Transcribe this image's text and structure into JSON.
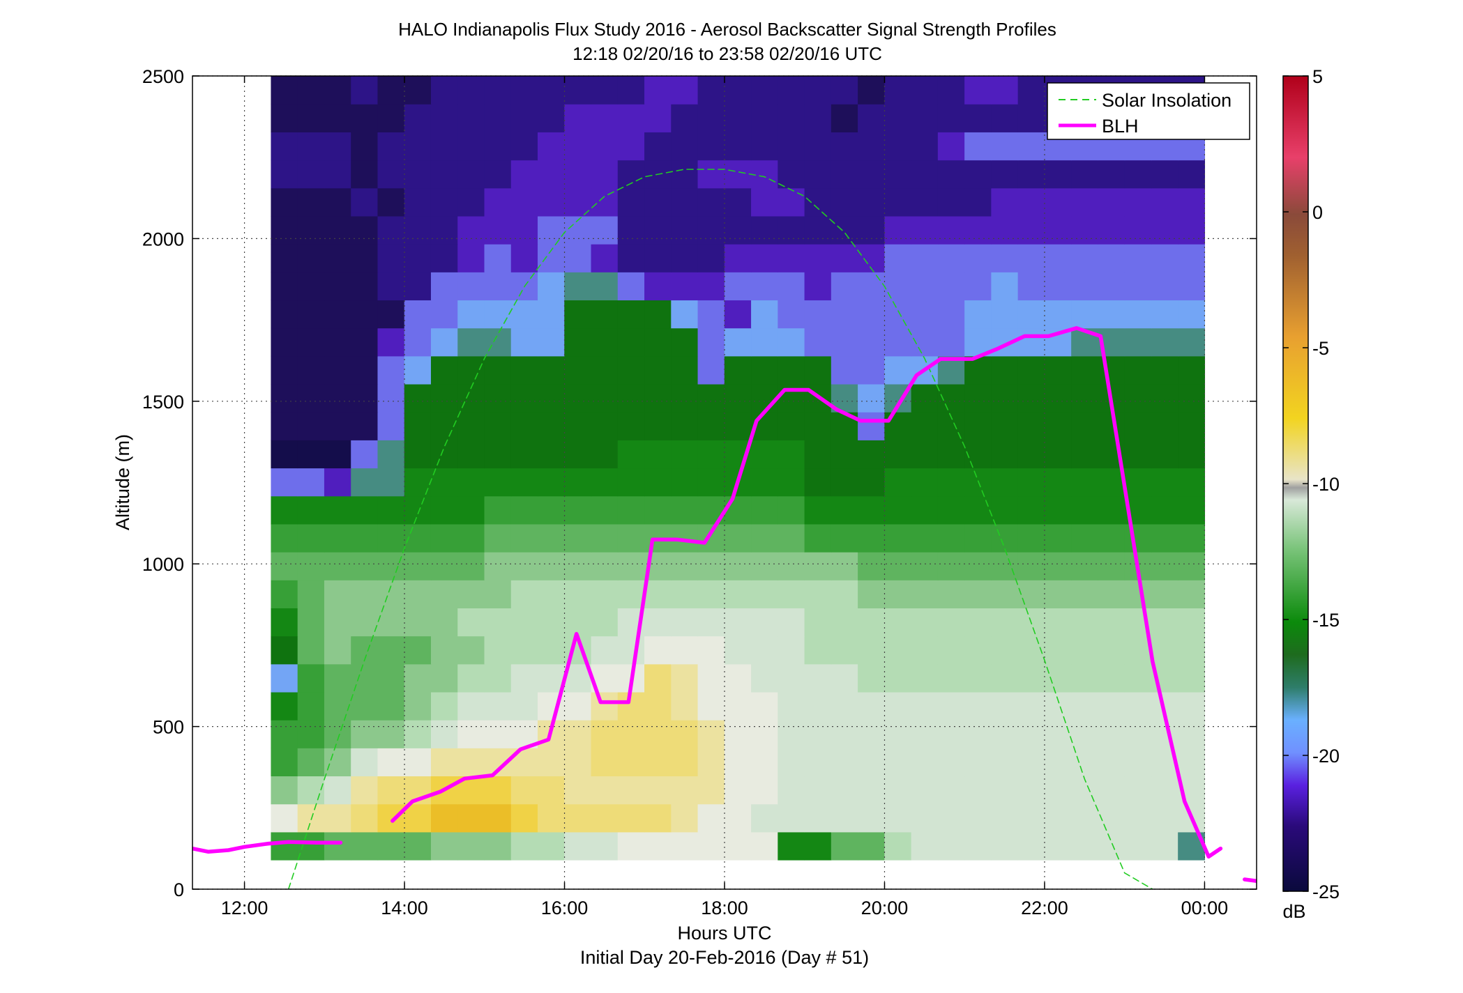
{
  "chart_data": {
    "type": "heatmap",
    "title": "HALO Indianapolis Flux Study 2016 - Aerosol Backscatter Signal Strength Profiles",
    "subtitle": "12:18 02/20/16 to 23:58 02/20/16  UTC",
    "xlabel": "Hours UTC",
    "xlabel2": "Initial Day 20-Feb-2016 (Day # 51)",
    "ylabel": "Altitude (m)",
    "x_unit": "hours UTC",
    "xlim": [
      11.35,
      24.65
    ],
    "ylim": [
      0,
      2500
    ],
    "x_ticks": [
      12,
      14,
      16,
      18,
      20,
      22,
      24
    ],
    "x_tick_labels": [
      "12:00",
      "14:00",
      "16:00",
      "18:00",
      "20:00",
      "22:00",
      "00:00"
    ],
    "y_ticks": [
      0,
      500,
      1000,
      1500,
      2000,
      2500
    ],
    "y_tick_labels": [
      "0",
      "500",
      "1000",
      "1500",
      "2000",
      "2500"
    ],
    "grid": true,
    "legend_position": "top-right",
    "colorbar": {
      "label": "dB",
      "min": -25,
      "max": 5,
      "ticks": [
        5,
        0,
        -5,
        -10,
        -15,
        -20,
        -25
      ],
      "tick_labels": [
        "5",
        "0",
        "-5",
        "-10",
        "-15",
        "-20",
        "-25"
      ]
    },
    "heatmap": {
      "x_start": 12.33,
      "x_end": 24.0,
      "y_bottom": 90,
      "y_top": 2500,
      "columns": 35,
      "rows": 28,
      "values_dB": [
        [
          -15,
          -15,
          -14,
          -14,
          -14,
          -14,
          -13,
          -13,
          -13,
          -12,
          -12,
          -11,
          -11,
          -10,
          -10,
          -10,
          -10,
          -10,
          -10,
          -16,
          -16,
          -14,
          -14,
          -12,
          -11,
          -11,
          -11,
          -11,
          -11,
          -11,
          -11,
          -11,
          -11,
          -11,
          -18
        ],
        [
          -10,
          -9,
          -9,
          -8,
          -7,
          -7,
          -6,
          -6,
          -6,
          -7,
          -8,
          -8,
          -8,
          -8,
          -8,
          -9,
          -10,
          -10,
          -11,
          -11,
          -11,
          -11,
          -11,
          -11,
          -11,
          -11,
          -11,
          -11,
          -11,
          -11,
          -11,
          -11,
          -11,
          -11,
          -11
        ],
        [
          -13,
          -12,
          -11,
          -9,
          -8,
          -8,
          -7,
          -7,
          -7,
          -8,
          -8,
          -9,
          -9,
          -9,
          -9,
          -9,
          -9,
          -10,
          -10,
          -11,
          -11,
          -11,
          -11,
          -11,
          -11,
          -11,
          -11,
          -11,
          -11,
          -11,
          -11,
          -11,
          -11,
          -11,
          -11
        ],
        [
          -15,
          -14,
          -13,
          -11,
          -10,
          -10,
          -9,
          -9,
          -9,
          -9,
          -9,
          -9,
          -8,
          -8,
          -8,
          -8,
          -9,
          -10,
          -10,
          -11,
          -11,
          -11,
          -11,
          -11,
          -11,
          -11,
          -11,
          -11,
          -11,
          -11,
          -11,
          -11,
          -11,
          -11,
          -11
        ],
        [
          -15,
          -15,
          -14,
          -13,
          -13,
          -12,
          -11,
          -10,
          -10,
          -10,
          -9,
          -9,
          -8,
          -8,
          -8,
          -8,
          -9,
          -10,
          -10,
          -11,
          -11,
          -11,
          -11,
          -11,
          -11,
          -11,
          -11,
          -11,
          -11,
          -11,
          -11,
          -11,
          -11,
          -11,
          -11
        ],
        [
          -16,
          -15,
          -14,
          -14,
          -14,
          -13,
          -12,
          -11,
          -11,
          -11,
          -10,
          -10,
          -9,
          -8,
          -8,
          -9,
          -10,
          -10,
          -10,
          -11,
          -11,
          -11,
          -11,
          -11,
          -11,
          -11,
          -11,
          -11,
          -11,
          -11,
          -11,
          -11,
          -11,
          -11,
          -11
        ],
        [
          -19,
          -15,
          -14,
          -14,
          -14,
          -13,
          -13,
          -12,
          -12,
          -11,
          -11,
          -11,
          -10,
          -10,
          -8,
          -9,
          -10,
          -10,
          -11,
          -11,
          -11,
          -11,
          -12,
          -12,
          -12,
          -12,
          -12,
          -12,
          -12,
          -12,
          -12,
          -12,
          -12,
          -12,
          -12
        ],
        [
          -17,
          -14,
          -13,
          -14,
          -14,
          -14,
          -13,
          -13,
          -12,
          -12,
          -12,
          -12,
          -11,
          -11,
          -10,
          -10,
          -10,
          -11,
          -11,
          -11,
          -12,
          -12,
          -12,
          -12,
          -12,
          -12,
          -12,
          -12,
          -12,
          -12,
          -12,
          -12,
          -12,
          -12,
          -12
        ],
        [
          -16,
          -14,
          -13,
          -13,
          -13,
          -13,
          -13,
          -12,
          -12,
          -12,
          -12,
          -12,
          -12,
          -11,
          -11,
          -11,
          -11,
          -11,
          -11,
          -11,
          -12,
          -12,
          -12,
          -12,
          -12,
          -12,
          -12,
          -12,
          -12,
          -12,
          -12,
          -12,
          -12,
          -12,
          -12
        ],
        [
          -15,
          -14,
          -13,
          -13,
          -13,
          -13,
          -13,
          -13,
          -13,
          -12,
          -12,
          -12,
          -12,
          -12,
          -12,
          -12,
          -12,
          -12,
          -12,
          -12,
          -12,
          -12,
          -13,
          -13,
          -13,
          -13,
          -13,
          -13,
          -13,
          -13,
          -13,
          -13,
          -13,
          -13,
          -13
        ],
        [
          -14,
          -14,
          -14,
          -14,
          -14,
          -14,
          -14,
          -14,
          -13,
          -13,
          -13,
          -13,
          -13,
          -13,
          -13,
          -13,
          -13,
          -13,
          -13,
          -13,
          -13,
          -13,
          -14,
          -14,
          -14,
          -14,
          -14,
          -14,
          -14,
          -14,
          -14,
          -14,
          -14,
          -14,
          -14
        ],
        [
          -15,
          -15,
          -15,
          -15,
          -15,
          -15,
          -15,
          -15,
          -14,
          -14,
          -14,
          -14,
          -14,
          -14,
          -14,
          -14,
          -14,
          -14,
          -14,
          -14,
          -15,
          -15,
          -15,
          -15,
          -15,
          -15,
          -15,
          -15,
          -15,
          -15,
          -15,
          -15,
          -15,
          -15,
          -15
        ],
        [
          -16,
          -16,
          -16,
          -16,
          -16,
          -16,
          -16,
          -16,
          -15,
          -15,
          -15,
          -15,
          -15,
          -15,
          -15,
          -15,
          -15,
          -15,
          -15,
          -15,
          -16,
          -16,
          -16,
          -16,
          -16,
          -16,
          -16,
          -16,
          -16,
          -16,
          -16,
          -16,
          -16,
          -16,
          -16
        ],
        [
          -20,
          -20,
          -21,
          -18,
          -18,
          -16,
          -16,
          -16,
          -16,
          -16,
          -16,
          -16,
          -16,
          -16,
          -16,
          -16,
          -16,
          -16,
          -16,
          -16,
          -17,
          -17,
          -17,
          -16,
          -16,
          -16,
          -16,
          -16,
          -16,
          -16,
          -16,
          -16,
          -16,
          -16,
          -16
        ],
        [
          -24,
          -24,
          -24,
          -20,
          -18,
          -17,
          -17,
          -17,
          -17,
          -17,
          -17,
          -17,
          -17,
          -16,
          -16,
          -16,
          -16,
          -16,
          -16,
          -16,
          -17,
          -17,
          -17,
          -17,
          -17,
          -17,
          -17,
          -17,
          -17,
          -17,
          -17,
          -17,
          -17,
          -17,
          -17
        ],
        [
          -23,
          -23,
          -23,
          -23,
          -20,
          -17,
          -17,
          -17,
          -17,
          -17,
          -17,
          -17,
          -17,
          -17,
          -17,
          -17,
          -17,
          -17,
          -17,
          -17,
          -17,
          -17,
          -20,
          -17,
          -17,
          -17,
          -17,
          -17,
          -17,
          -17,
          -17,
          -17,
          -17,
          -17,
          -17
        ],
        [
          -23,
          -23,
          -23,
          -23,
          -20,
          -17,
          -17,
          -17,
          -17,
          -17,
          -17,
          -17,
          -17,
          -17,
          -17,
          -17,
          -17,
          -17,
          -17,
          -17,
          -17,
          -18,
          -19,
          -18,
          -17,
          -17,
          -17,
          -17,
          -17,
          -17,
          -17,
          -17,
          -17,
          -17,
          -17
        ],
        [
          -23,
          -23,
          -23,
          -23,
          -20,
          -19,
          -17,
          -17,
          -17,
          -17,
          -17,
          -17,
          -17,
          -17,
          -17,
          -17,
          -20,
          -17,
          -17,
          -17,
          -17,
          -20,
          -20,
          -19,
          -19,
          -18,
          -17,
          -17,
          -17,
          -17,
          -17,
          -17,
          -17,
          -17,
          -17
        ],
        [
          -23,
          -23,
          -23,
          -23,
          -21,
          -20,
          -19,
          -18,
          -18,
          -19,
          -19,
          -17,
          -17,
          -17,
          -17,
          -17,
          -20,
          -19,
          -19,
          -19,
          -20,
          -20,
          -20,
          -20,
          -20,
          -20,
          -19,
          -19,
          -19,
          -19,
          -18,
          -18,
          -18,
          -18,
          -18
        ],
        [
          -23,
          -23,
          -23,
          -23,
          -23,
          -20,
          -20,
          -19,
          -19,
          -19,
          -19,
          -17,
          -17,
          -17,
          -17,
          -19,
          -20,
          -21,
          -19,
          -20,
          -20,
          -20,
          -20,
          -20,
          -20,
          -20,
          -19,
          -19,
          -19,
          -19,
          -19,
          -19,
          -19,
          -19,
          -19
        ],
        [
          -23,
          -23,
          -23,
          -23,
          -22,
          -22,
          -20,
          -20,
          -20,
          -20,
          -19,
          -18,
          -18,
          -20,
          -21,
          -21,
          -21,
          -20,
          -20,
          -20,
          -21,
          -20,
          -20,
          -20,
          -20,
          -20,
          -20,
          -19,
          -20,
          -20,
          -20,
          -20,
          -20,
          -20,
          -20
        ],
        [
          -23,
          -23,
          -23,
          -23,
          -22,
          -22,
          -22,
          -21,
          -20,
          -21,
          -20,
          -20,
          -21,
          -22,
          -22,
          -22,
          -22,
          -21,
          -21,
          -21,
          -21,
          -21,
          -21,
          -20,
          -20,
          -20,
          -20,
          -20,
          -20,
          -20,
          -20,
          -20,
          -20,
          -20,
          -20
        ],
        [
          -23,
          -23,
          -23,
          -23,
          -22,
          -22,
          -22,
          -21,
          -21,
          -21,
          -20,
          -20,
          -20,
          -22,
          -22,
          -22,
          -22,
          -22,
          -22,
          -22,
          -22,
          -22,
          -22,
          -21,
          -21,
          -21,
          -21,
          -21,
          -21,
          -21,
          -21,
          -21,
          -21,
          -21,
          -21
        ],
        [
          -23,
          -23,
          -23,
          -22,
          -23,
          -22,
          -22,
          -22,
          -21,
          -21,
          -21,
          -21,
          -21,
          -22,
          -22,
          -22,
          -22,
          -22,
          -21,
          -21,
          -22,
          -22,
          -22,
          -22,
          -22,
          -22,
          -22,
          -21,
          -21,
          -21,
          -21,
          -21,
          -21,
          -21,
          -21
        ],
        [
          -22,
          -22,
          -22,
          -23,
          -22,
          -22,
          -22,
          -22,
          -22,
          -21,
          -21,
          -21,
          -21,
          -22,
          -22,
          -22,
          -21,
          -21,
          -21,
          -22,
          -22,
          -22,
          -22,
          -22,
          -22,
          -22,
          -22,
          -22,
          -22,
          -22,
          -22,
          -22,
          -22,
          -22,
          -22
        ],
        [
          -22,
          -22,
          -22,
          -23,
          -22,
          -22,
          -22,
          -22,
          -22,
          -22,
          -21,
          -21,
          -21,
          -21,
          -22,
          -22,
          -22,
          -22,
          -22,
          -22,
          -22,
          -22,
          -22,
          -22,
          -22,
          -21,
          -20,
          -20,
          -20,
          -20,
          -20,
          -20,
          -20,
          -20,
          -20
        ],
        [
          -23,
          -23,
          -23,
          -23,
          -23,
          -22,
          -22,
          -22,
          -22,
          -22,
          -22,
          -21,
          -21,
          -21,
          -21,
          -22,
          -22,
          -22,
          -22,
          -22,
          -22,
          -23,
          -22,
          -22,
          -22,
          -22,
          -22,
          -22,
          -22,
          -22,
          -22,
          -22,
          -22,
          -22,
          -22
        ],
        [
          -23,
          -23,
          -23,
          -22,
          -23,
          -23,
          -22,
          -22,
          -22,
          -22,
          -22,
          -22,
          -22,
          -22,
          -21,
          -21,
          -22,
          -22,
          -22,
          -22,
          -22,
          -22,
          -23,
          -22,
          -22,
          -22,
          -21,
          -21,
          -22,
          -22,
          -22,
          -22,
          -22,
          -22,
          -22
        ]
      ]
    },
    "series": [
      {
        "name": "Solar Insolation",
        "style": "dashed",
        "color": "#22cc22",
        "x": [
          12.55,
          13.0,
          13.5,
          14.0,
          14.5,
          15.0,
          15.5,
          16.0,
          16.5,
          17.0,
          17.5,
          18.0,
          18.5,
          19.0,
          19.5,
          20.0,
          20.5,
          21.0,
          21.5,
          22.0,
          22.5,
          23.0,
          23.35
        ],
        "y": [
          0,
          339,
          704,
          1049,
          1361,
          1632,
          1853,
          2019,
          2130,
          2190,
          2213,
          2213,
          2190,
          2130,
          2019,
          1853,
          1632,
          1361,
          1049,
          704,
          339,
          50,
          0
        ]
      },
      {
        "name": "BLH",
        "style": "solid",
        "color": "#ff00ff",
        "x": [
          11.35,
          11.55,
          11.8,
          12.0,
          12.3,
          12.55,
          12.9,
          13.2,
          null,
          13.85,
          14.1,
          14.45,
          14.75,
          15.1,
          15.45,
          15.8,
          16.15,
          16.45,
          16.8,
          17.1,
          17.4,
          17.75,
          18.1,
          18.4,
          18.75,
          19.05,
          19.4,
          19.7,
          20.05,
          20.4,
          20.7,
          21.1,
          21.4,
          21.75,
          22.05,
          22.4,
          22.7,
          23.35,
          23.75,
          24.05,
          24.2,
          null,
          24.5,
          24.65
        ],
        "y": [
          125,
          115,
          120,
          130,
          140,
          145,
          143,
          143,
          null,
          210,
          270,
          300,
          340,
          350,
          430,
          460,
          785,
          575,
          575,
          1075,
          1075,
          1065,
          1200,
          1440,
          1535,
          1535,
          1475,
          1440,
          1440,
          1580,
          1630,
          1630,
          1660,
          1700,
          1700,
          1725,
          1700,
          700,
          270,
          100,
          125,
          null,
          30,
          25
        ]
      }
    ]
  }
}
